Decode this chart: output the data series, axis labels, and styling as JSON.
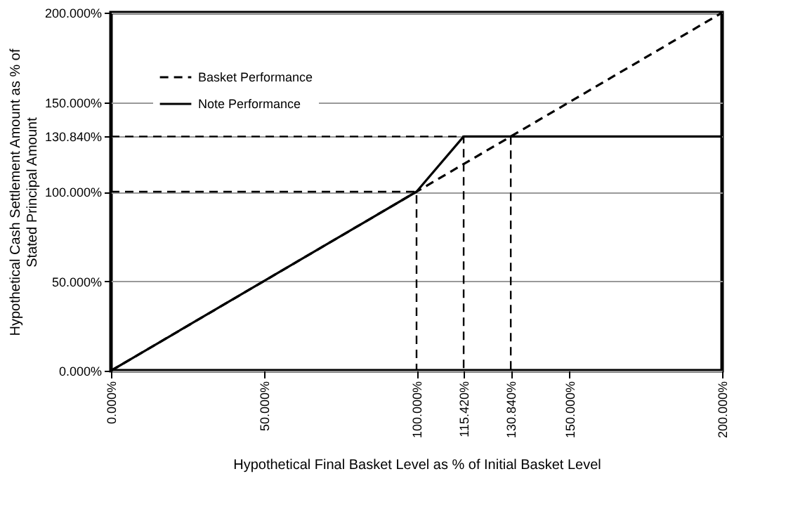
{
  "chart_data": {
    "type": "line",
    "xlabel": "Hypothetical Final Basket Level as % of Initial Basket Level",
    "ylabel": "Hypothetical Cash Settlement Amount as % of\nStated Principal Amount",
    "series": [
      {
        "name": "Basket Performance",
        "color": "#000000",
        "line_style": "dashed",
        "x": [
          0,
          200
        ],
        "values": [
          0,
          200
        ]
      },
      {
        "name": "Note Performance",
        "color": "#000000",
        "line_style": "solid",
        "x": [
          0,
          100,
          115.42,
          200
        ],
        "values": [
          0,
          100,
          130.84,
          130.84
        ]
      },
      {
        "color": "#000000",
        "line_style": "dashed",
        "x": [
          0,
          100,
          100
        ],
        "values": [
          100,
          100,
          0
        ]
      },
      {
        "color": "#000000",
        "line_style": "dashed",
        "x": [
          0,
          115.42,
          115.42
        ],
        "values": [
          130.84,
          130.84,
          0
        ]
      },
      {
        "color": "#000000",
        "line_style": "dashed",
        "x": [
          130.84,
          130.84
        ],
        "values": [
          130.84,
          0
        ]
      }
    ],
    "xlim": [
      0,
      200
    ],
    "ylim": [
      0,
      200
    ],
    "xticks": [
      {
        "value": 0,
        "label": "0.000%"
      },
      {
        "value": 50,
        "label": "50.000%"
      },
      {
        "value": 100,
        "label": "100.000%"
      },
      {
        "value": 115.42,
        "label": "115.420%"
      },
      {
        "value": 130.84,
        "label": "130.840%"
      },
      {
        "value": 150,
        "label": "150.000%"
      },
      {
        "value": 200,
        "label": "200.000%"
      }
    ],
    "yticks": [
      {
        "value": 0,
        "label": "0.000%"
      },
      {
        "value": 50,
        "label": "50.000%"
      },
      {
        "value": 100,
        "label": "100.000%"
      },
      {
        "value": 130.84,
        "label": "130.840%"
      },
      {
        "value": 150,
        "label": "150.000%"
      },
      {
        "value": 200,
        "label": "200.000%"
      }
    ],
    "grid": "y",
    "legend": "top left",
    "marker": "none"
  }
}
